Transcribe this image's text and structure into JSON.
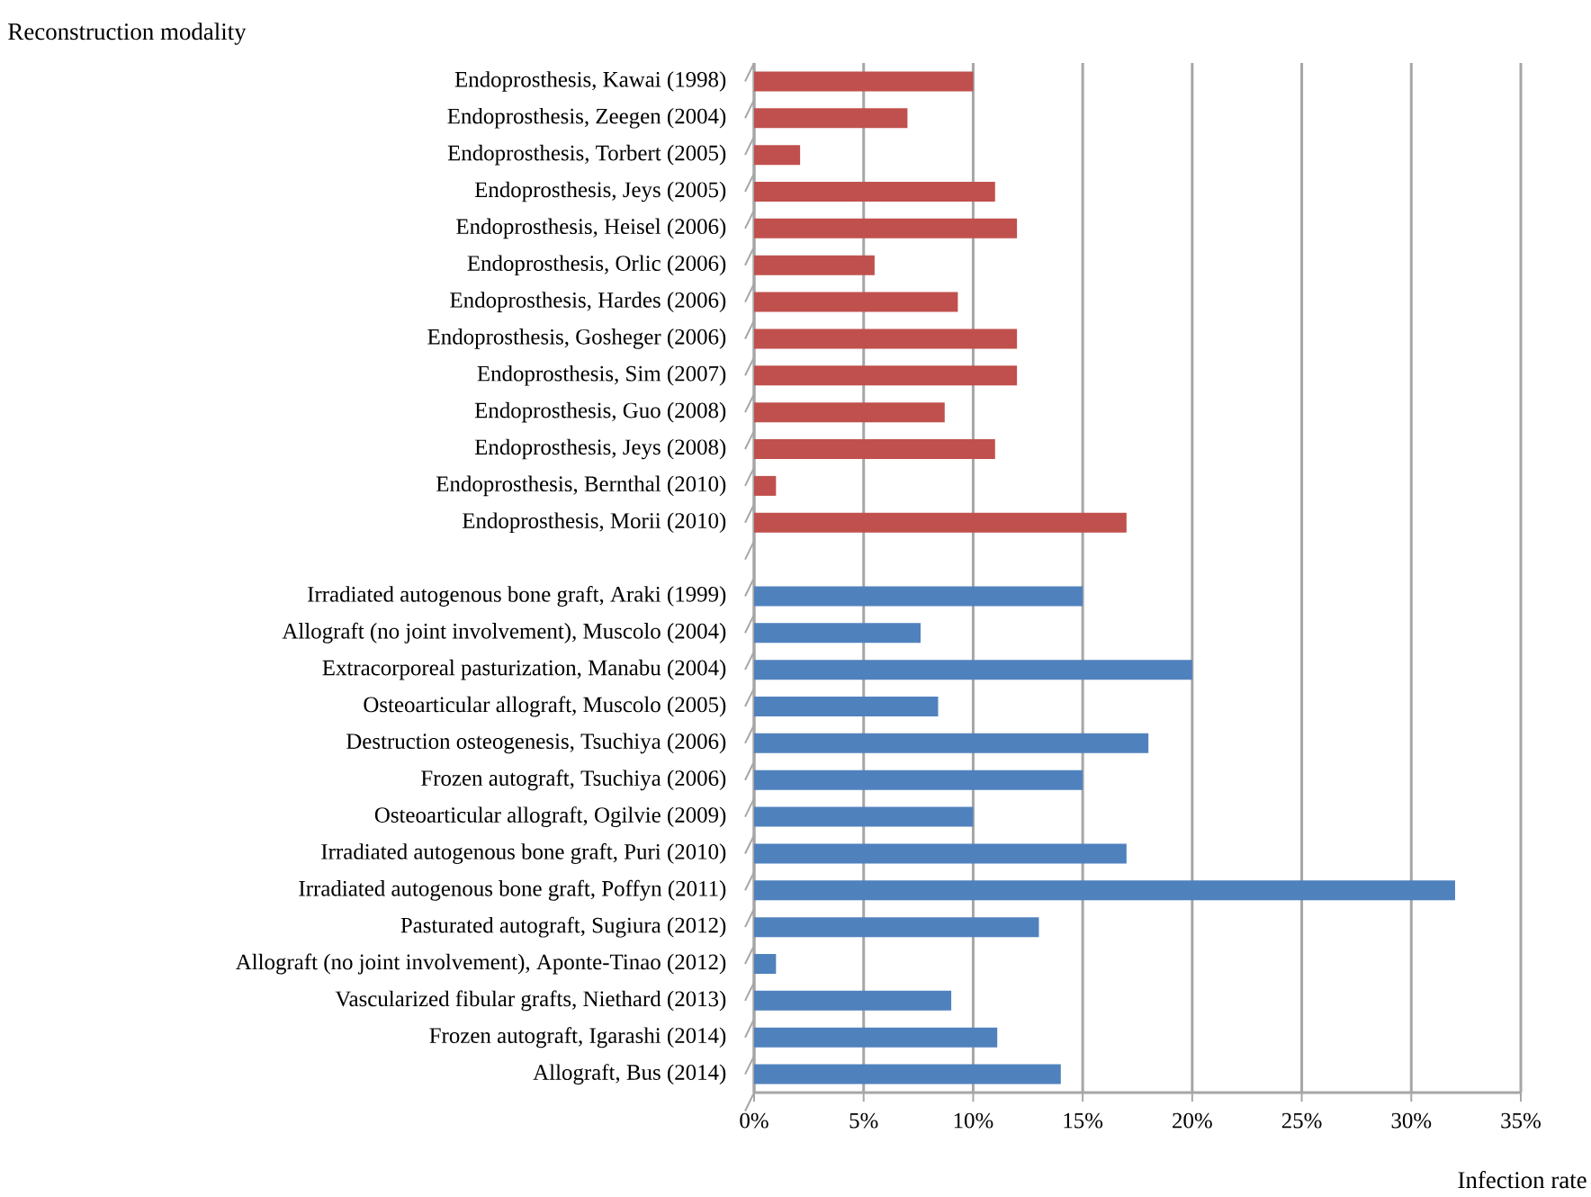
{
  "chart_data": {
    "type": "bar",
    "orientation": "horizontal",
    "ylabel": "Reconstruction modality",
    "xlabel": "Infection rate",
    "categories": [
      "Endoprosthesis, Kawai (1998)",
      "Endoprosthesis, Zeegen (2004)",
      "Endoprosthesis, Torbert (2005)",
      "Endoprosthesis, Jeys (2005)",
      "Endoprosthesis, Heisel (2006)",
      "Endoprosthesis, Orlic  (2006)",
      "Endoprosthesis, Hardes (2006)",
      "Endoprosthesis, Gosheger (2006)",
      "Endoprosthesis, Sim (2007)",
      "Endoprosthesis, Guo (2008)",
      "Endoprosthesis, Jeys (2008)",
      "Endoprosthesis, Bernthal (2010)",
      "Endoprosthesis, Morii (2010)",
      null,
      "Irradiated autogenous bone graft, Araki (1999)",
      "Allograft (no joint involvement), Muscolo (2004)",
      "Extracorporeal pasturization, Manabu (2004)",
      "Osteoarticular allograft, Muscolo (2005)",
      "Destruction osteogenesis, Tsuchiya (2006)",
      "Frozen autograft, Tsuchiya (2006)",
      "Osteoarticular allograft, Ogilvie (2009)",
      "Irradiated autogenous bone graft, Puri (2010)",
      "Irradiated autogenous bone graft, Poffyn (2011)",
      "Pasturated autograft, Sugiura (2012)",
      "Allograft (no joint involvement), Aponte-Tinao (2012)",
      "Vascularized fibular grafts, Niethard (2013)",
      "Frozen autograft, Igarashi  (2014)",
      "Allograft, Bus (2014)"
    ],
    "values": [
      10,
      7,
      2.1,
      11,
      12,
      5.5,
      9.3,
      12,
      12,
      8.7,
      11,
      1,
      17,
      null,
      15,
      7.6,
      20,
      8.4,
      18,
      15,
      10,
      17,
      32,
      13,
      1,
      9,
      11.1,
      14
    ],
    "colors": [
      "#c0504d",
      "#c0504d",
      "#c0504d",
      "#c0504d",
      "#c0504d",
      "#c0504d",
      "#c0504d",
      "#c0504d",
      "#c0504d",
      "#c0504d",
      "#c0504d",
      "#c0504d",
      "#c0504d",
      null,
      "#4f81bd",
      "#4f81bd",
      "#4f81bd",
      "#4f81bd",
      "#4f81bd",
      "#4f81bd",
      "#4f81bd",
      "#4f81bd",
      "#4f81bd",
      "#4f81bd",
      "#4f81bd",
      "#4f81bd",
      "#4f81bd",
      "#4f81bd"
    ],
    "xlim": [
      0,
      35
    ],
    "xticks": [
      {
        "value": 0,
        "label": "0%"
      },
      {
        "value": 5,
        "label": "5%"
      },
      {
        "value": 10,
        "label": "10%"
      },
      {
        "value": 15,
        "label": "15%"
      },
      {
        "value": 20,
        "label": "20%"
      },
      {
        "value": 25,
        "label": "25%"
      },
      {
        "value": 30,
        "label": "30%"
      },
      {
        "value": 35,
        "label": "35%"
      }
    ],
    "grid": "x"
  }
}
